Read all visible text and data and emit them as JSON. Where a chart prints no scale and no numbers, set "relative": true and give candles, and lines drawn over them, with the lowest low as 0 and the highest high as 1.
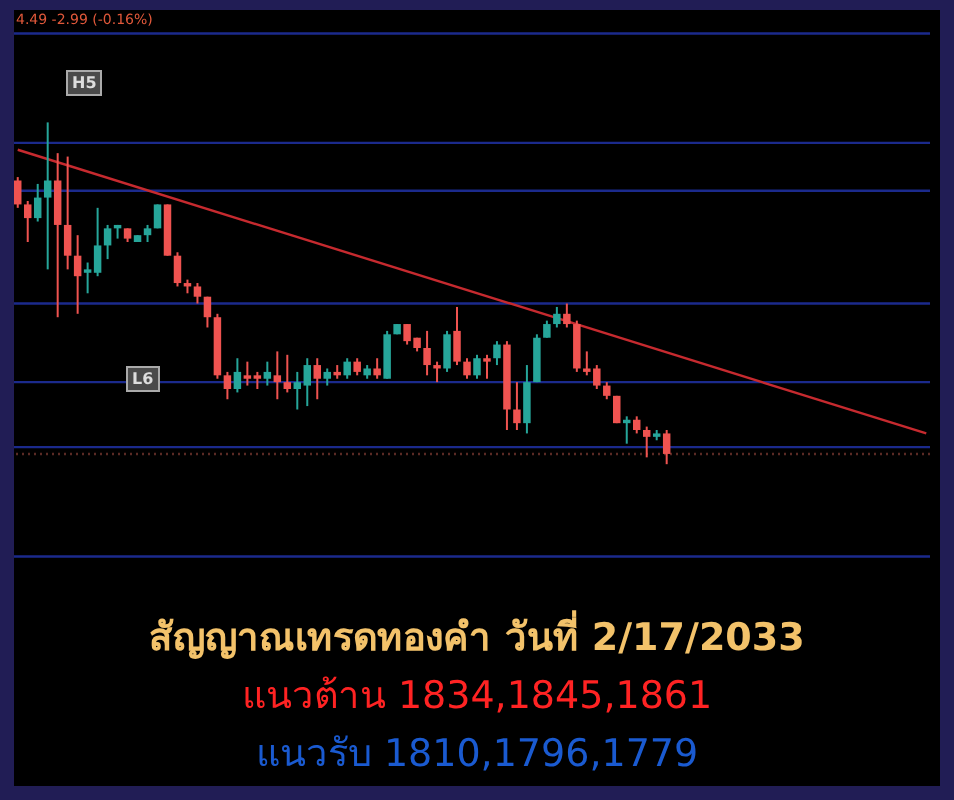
{
  "chart_data": {
    "type": "candlestick",
    "relative": true,
    "title": "สัญญาณเทรดทองคำ วันที่ 2/17/2033",
    "subtitle": "แนวต้าน 1834,1845,1861",
    "annotations": [
      "แนวรับ 1810,1796,1779",
      "4.49 -2.99 (-0.16%)",
      "H5",
      "L6"
    ],
    "categories": [
      null,
      null,
      null,
      null,
      null,
      null,
      null,
      null,
      null,
      null,
      null,
      null,
      null,
      null,
      null,
      null,
      null,
      null,
      null,
      null,
      null,
      null,
      null,
      null,
      null,
      null,
      null,
      null,
      null,
      null,
      null,
      null,
      null,
      null,
      null,
      null,
      null,
      null,
      null,
      null,
      null,
      null,
      null,
      null,
      null,
      null,
      null,
      null,
      null,
      null,
      null,
      null,
      null,
      null,
      null,
      null,
      null,
      null,
      null,
      null,
      null,
      null,
      null,
      null,
      null,
      null,
      null,
      null,
      null,
      null,
      null,
      null,
      null,
      null,
      null,
      null,
      null,
      null,
      null,
      null,
      null,
      null,
      null,
      null,
      null,
      null,
      null,
      null,
      null,
      null,
      null,
      null
    ],
    "ohlc": [
      [
        0.83,
        0.84,
        0.75,
        0.76
      ],
      [
        0.76,
        0.77,
        0.65,
        0.72
      ],
      [
        0.72,
        0.82,
        0.71,
        0.78
      ],
      [
        0.78,
        1,
        0.57,
        0.83
      ],
      [
        0.83,
        0.91,
        0.43,
        0.7
      ],
      [
        0.7,
        0.9,
        0.57,
        0.61
      ],
      [
        0.61,
        0.67,
        0.44,
        0.55
      ],
      [
        0.56,
        0.59,
        0.5,
        0.57
      ],
      [
        0.56,
        0.75,
        0.55,
        0.64
      ],
      [
        0.64,
        0.7,
        0.6,
        0.69
      ],
      [
        0.69,
        0.7,
        0.66,
        0.7
      ],
      [
        0.69,
        0.69,
        0.65,
        0.66
      ],
      [
        0.65,
        0.67,
        0.65,
        0.67
      ],
      [
        0.67,
        0.7,
        0.65,
        0.69
      ],
      [
        0.69,
        0.76,
        0.69,
        0.76
      ],
      [
        0.76,
        0.76,
        0.61,
        0.61
      ],
      [
        0.61,
        0.62,
        0.52,
        0.53
      ],
      [
        0.53,
        0.54,
        0.5,
        0.52
      ],
      [
        0.52,
        0.53,
        0.47,
        0.49
      ],
      [
        0.49,
        0.49,
        0.4,
        0.43
      ],
      [
        0.43,
        0.44,
        0.25,
        0.26
      ],
      [
        0.26,
        0.27,
        0.19,
        0.22
      ],
      [
        0.22,
        0.31,
        0.21,
        0.27
      ],
      [
        0.26,
        0.3,
        0.23,
        0.25
      ],
      [
        0.26,
        0.27,
        0.22,
        0.25
      ],
      [
        0.25,
        0.3,
        0.23,
        0.27
      ],
      [
        0.26,
        0.33,
        0.19,
        0.24
      ],
      [
        0.24,
        0.32,
        0.21,
        0.22
      ],
      [
        0.22,
        0.27,
        0.16,
        0.24
      ],
      [
        0.23,
        0.31,
        0.17,
        0.29
      ],
      [
        0.29,
        0.31,
        0.19,
        0.25
      ],
      [
        0.25,
        0.28,
        0.23,
        0.27
      ],
      [
        0.27,
        0.29,
        0.25,
        0.26
      ],
      [
        0.26,
        0.31,
        0.25,
        0.3
      ],
      [
        0.3,
        0.31,
        0.26,
        0.27
      ],
      [
        0.26,
        0.29,
        0.25,
        0.28
      ],
      [
        0.28,
        0.31,
        0.25,
        0.26
      ],
      [
        0.25,
        0.39,
        0.25,
        0.38
      ],
      [
        0.38,
        0.41,
        0.38,
        0.41
      ],
      [
        0.41,
        0.41,
        0.35,
        0.36
      ],
      [
        0.37,
        0.37,
        0.33,
        0.34
      ],
      [
        0.34,
        0.39,
        0.26,
        0.29
      ],
      [
        0.29,
        0.3,
        0.24,
        0.28
      ],
      [
        0.28,
        0.39,
        0.27,
        0.38
      ],
      [
        0.39,
        0.46,
        0.29,
        0.3
      ],
      [
        0.3,
        0.31,
        0.25,
        0.26
      ],
      [
        0.26,
        0.32,
        0.25,
        0.31
      ],
      [
        0.31,
        0.32,
        0.25,
        0.3
      ],
      [
        0.31,
        0.36,
        0.29,
        0.35
      ],
      [
        0.35,
        0.36,
        0.1,
        0.16
      ],
      [
        0.16,
        0.24,
        0.1,
        0.12
      ],
      [
        0.12,
        0.29,
        0.09,
        0.24
      ],
      [
        0.24,
        0.38,
        0.24,
        0.37
      ],
      [
        0.37,
        0.42,
        0.37,
        0.41
      ],
      [
        0.41,
        0.46,
        0.4,
        0.44
      ],
      [
        0.44,
        0.47,
        0.4,
        0.41
      ],
      [
        0.41,
        0.42,
        0.27,
        0.28
      ],
      [
        0.28,
        0.33,
        0.26,
        0.27
      ],
      [
        0.28,
        0.29,
        0.22,
        0.23
      ],
      [
        0.23,
        0.24,
        0.19,
        0.2
      ],
      [
        0.2,
        0.2,
        0.12,
        0.12
      ],
      [
        0.12,
        0.14,
        0.06,
        0.13
      ],
      [
        0.13,
        0.14,
        0.09,
        0.1
      ],
      [
        0.1,
        0.11,
        0.02,
        0.08
      ],
      [
        0.08,
        0.1,
        0.07,
        0.09
      ],
      [
        0.09,
        0.1,
        0,
        0.03
      ],
      null,
      null,
      null,
      null,
      null,
      null,
      null,
      null,
      null,
      null,
      null,
      null,
      null,
      null,
      null,
      null,
      null,
      null,
      null,
      null,
      null,
      null,
      null,
      null,
      null,
      null
    ],
    "series": [
      {
        "type": "line",
        "color": "#c62a2f",
        "values": [
          0.92,
          null,
          null,
          null,
          null,
          null,
          null,
          null,
          null,
          null,
          null,
          null,
          null,
          null,
          null,
          null,
          null,
          null,
          null,
          null,
          null,
          null,
          null,
          null,
          null,
          null,
          null,
          null,
          null,
          null,
          null,
          null,
          null,
          null,
          null,
          null,
          null,
          null,
          null,
          null,
          null,
          null,
          null,
          null,
          null,
          null,
          null,
          null,
          null,
          null,
          null,
          null,
          null,
          null,
          null,
          null,
          null,
          null,
          null,
          null,
          null,
          null,
          null,
          null,
          null,
          null,
          null,
          null,
          null,
          null,
          null,
          null,
          null,
          null,
          null,
          null,
          null,
          null,
          null,
          null,
          null,
          null,
          null,
          null,
          null,
          null,
          null,
          null,
          null,
          null,
          null,
          0.09
        ]
      }
    ],
    "ref_lines": [
      {
        "axis": "y",
        "value": 1.26,
        "color": "#1b2a8c"
      },
      {
        "axis": "y",
        "value": 0.94,
        "color": "#1b2a8c"
      },
      {
        "axis": "y",
        "value": 0.8,
        "color": "#1b2a8c"
      },
      {
        "axis": "y",
        "value": 0.47,
        "color": "#1b2a8c"
      },
      {
        "axis": "y",
        "value": 0.24,
        "color": "#1b2a8c"
      },
      {
        "axis": "y",
        "value": 0.05,
        "color": "#1b2a8c"
      },
      {
        "axis": "y",
        "value": 0.03,
        "color": "#5a2a24",
        "line_style": "dotted"
      },
      {
        "axis": "y",
        "value": -0.27,
        "color": "#1b2a8c"
      }
    ]
  }
}
